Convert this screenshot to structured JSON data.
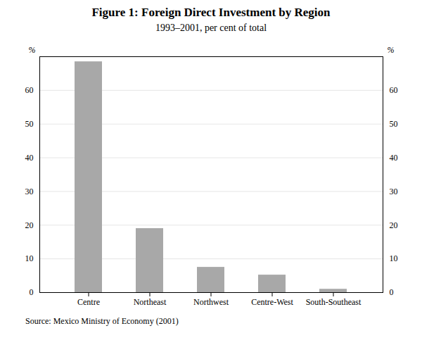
{
  "chart_data": {
    "type": "bar",
    "title": "Figure 1: Foreign Direct Investment by Region",
    "subtitle": "1993–2001, per cent of total",
    "source": "Source: Mexico Ministry of Economy (2001)",
    "categories": [
      "Centre",
      "Northeast",
      "Northwest",
      "Centre-West",
      "South-Southeast"
    ],
    "values": [
      68.5,
      19.0,
      7.5,
      5.2,
      1.0
    ],
    "color": "#a8a8a8",
    "ylabel": "%",
    "ylim": [
      0,
      70
    ],
    "yticks": [
      0,
      10,
      20,
      30,
      40,
      50,
      60
    ],
    "y2label": "%",
    "y2lim": [
      0,
      70
    ],
    "y2ticks": [
      0,
      10,
      20,
      30,
      40,
      50,
      60
    ],
    "grid": true
  }
}
